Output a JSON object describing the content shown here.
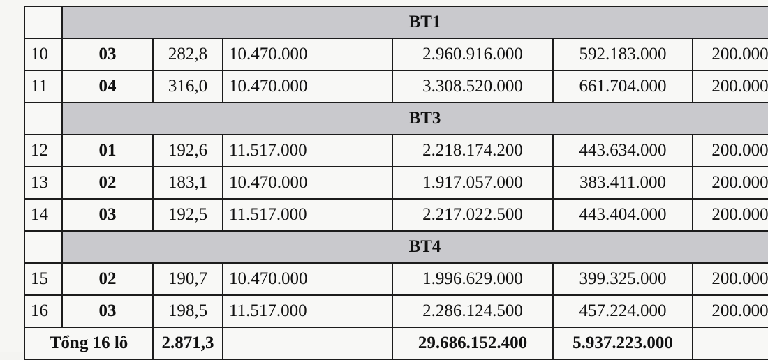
{
  "groups": [
    {
      "name": "BT1",
      "rows": [
        {
          "stt": "10",
          "lo": "03",
          "dien_tich": "282,8",
          "don_gia": "10.470.000",
          "thanh_tien": "2.960.916.000",
          "tien_coc": "592.183.000",
          "phi": "200.000"
        },
        {
          "stt": "11",
          "lo": "04",
          "dien_tich": "316,0",
          "don_gia": "10.470.000",
          "thanh_tien": "3.308.520.000",
          "tien_coc": "661.704.000",
          "phi": "200.000"
        }
      ]
    },
    {
      "name": "BT3",
      "rows": [
        {
          "stt": "12",
          "lo": "01",
          "dien_tich": "192,6",
          "don_gia": "11.517.000",
          "thanh_tien": "2.218.174.200",
          "tien_coc": "443.634.000",
          "phi": "200.000"
        },
        {
          "stt": "13",
          "lo": "02",
          "dien_tich": "183,1",
          "don_gia": "10.470.000",
          "thanh_tien": "1.917.057.000",
          "tien_coc": "383.411.000",
          "phi": "200.000"
        },
        {
          "stt": "14",
          "lo": "03",
          "dien_tich": "192,5",
          "don_gia": "11.517.000",
          "thanh_tien": "2.217.022.500",
          "tien_coc": "443.404.000",
          "phi": "200.000"
        }
      ]
    },
    {
      "name": "BT4",
      "rows": [
        {
          "stt": "15",
          "lo": "02",
          "dien_tich": "190,7",
          "don_gia": "10.470.000",
          "thanh_tien": "1.996.629.000",
          "tien_coc": "399.325.000",
          "phi": "200.000"
        },
        {
          "stt": "16",
          "lo": "03",
          "dien_tich": "198,5",
          "don_gia": "11.517.000",
          "thanh_tien": "2.286.124.500",
          "tien_coc": "457.224.000",
          "phi": "200.000"
        }
      ]
    }
  ],
  "total": {
    "label": "Tổng 16 lô",
    "dien_tich": "2.871,3",
    "thanh_tien": "29.686.152.400",
    "tien_coc": "5.937.223.000"
  }
}
